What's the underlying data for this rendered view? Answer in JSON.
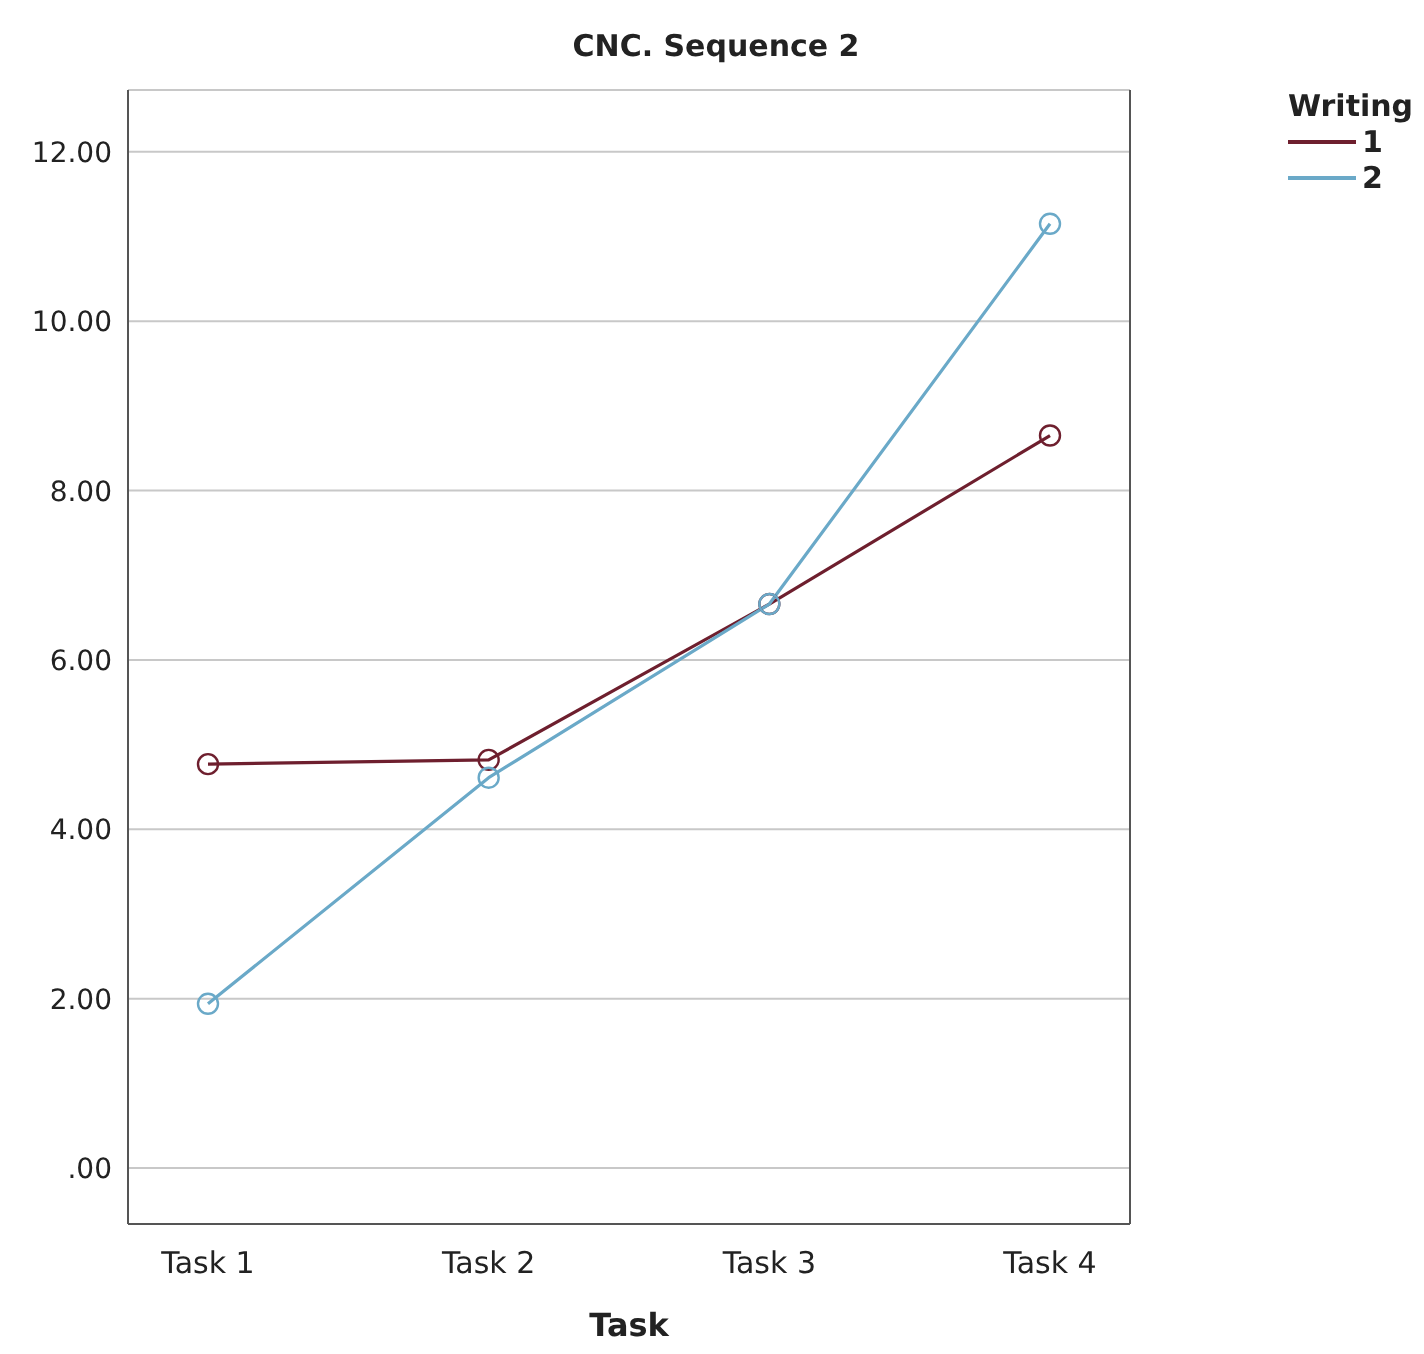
{
  "chart_data": {
    "type": "line",
    "title": "CNC. Sequence 2",
    "xlabel": "Task",
    "legend_title": "Writing",
    "categories": [
      "Task 1",
      "Task 2",
      "Task 3",
      "Task 4"
    ],
    "series": [
      {
        "name": "1",
        "color": "#6e1f2e",
        "values": [
          4.77,
          4.82,
          6.66,
          8.65
        ]
      },
      {
        "name": "2",
        "color": "#6aa9c8",
        "values": [
          1.94,
          4.61,
          6.66,
          11.15
        ]
      }
    ],
    "ylim": [
      -0.66,
      12.73
    ],
    "yticks": [
      {
        "value": 0,
        "label": ".00"
      },
      {
        "value": 2,
        "label": "2.00"
      },
      {
        "value": 4,
        "label": "4.00"
      },
      {
        "value": 6,
        "label": "6.00"
      },
      {
        "value": 8,
        "label": "8.00"
      },
      {
        "value": 10,
        "label": "10.00"
      },
      {
        "value": 12,
        "label": "12.00"
      }
    ],
    "grid": "y",
    "legend": "top right",
    "marker": "circle",
    "line_style": "solid"
  }
}
